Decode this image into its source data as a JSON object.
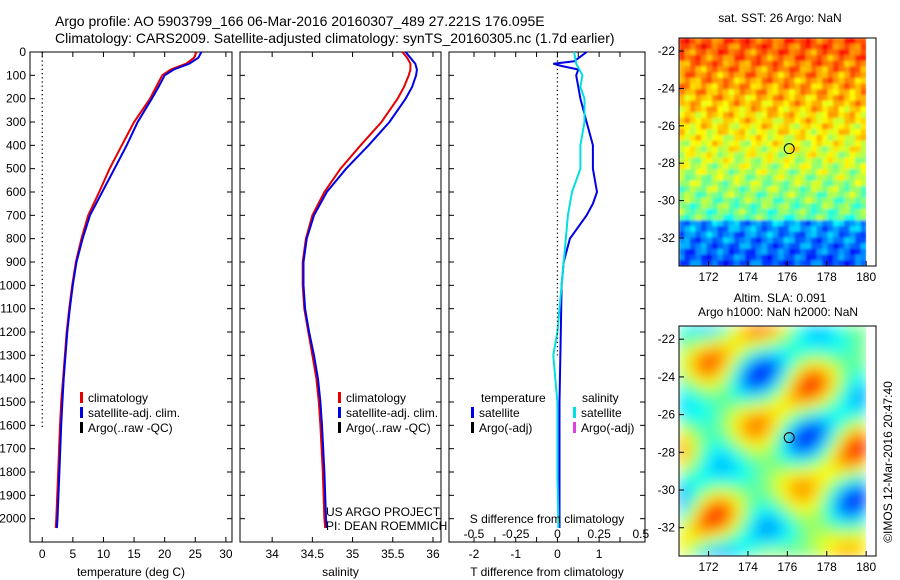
{
  "header": {
    "line1": "Argo profile: AO 5903799_166 06-Mar-2016 20160307_489 27.221S 176.095E",
    "line2": "Climatology: CARS2009. Satellite-adjusted climatology: synTS_20160305.nc (1.7d earlier)"
  },
  "project": {
    "line1": "US ARGO PROJECT",
    "line2": "PI: DEAN ROEMMICH"
  },
  "watermark": "©IMOS 12-Mar-2016 20:47:40",
  "colors": {
    "climatology": "#e60000",
    "satellite": "#0000e6",
    "argo": "#000000",
    "sal_satellite": "#00e0e0",
    "sal_argo": "#e040e0"
  },
  "chart_data": [
    {
      "type": "line",
      "xlabel": "temperature (deg C)",
      "xlim": [
        -2,
        31
      ],
      "ylim": [
        2100,
        0
      ],
      "xticks": [
        0,
        5,
        10,
        15,
        20,
        25,
        30
      ],
      "yticks": [
        0,
        100,
        200,
        300,
        400,
        500,
        600,
        700,
        800,
        900,
        1000,
        1100,
        1200,
        1300,
        1400,
        1500,
        1600,
        1700,
        1800,
        1900,
        2000
      ],
      "legend": [
        "climatology",
        "satellite-adj. clim.",
        "Argo(..raw -QC)"
      ],
      "series": [
        {
          "name": "climatology",
          "color": "#e60000",
          "depth": [
            0,
            25,
            50,
            75,
            100,
            150,
            200,
            300,
            400,
            500,
            600,
            700,
            800,
            900,
            1000,
            1100,
            1200,
            1300,
            1400,
            1500,
            1600,
            1800,
            2000,
            2040
          ],
          "values": [
            25.2,
            24.8,
            23.5,
            21.0,
            19.6,
            18.6,
            17.6,
            15.0,
            13.0,
            11.0,
            9.3,
            7.5,
            6.4,
            5.5,
            4.9,
            4.4,
            4.0,
            3.7,
            3.4,
            3.1,
            2.9,
            2.6,
            2.3,
            2.2
          ]
        },
        {
          "name": "satellite-adj. clim.",
          "color": "#0000e6",
          "depth": [
            0,
            25,
            50,
            75,
            100,
            150,
            200,
            300,
            400,
            500,
            600,
            700,
            800,
            900,
            1000,
            1100,
            1200,
            1300,
            1400,
            1500,
            1600,
            1800,
            2000,
            2040
          ],
          "values": [
            26.0,
            25.5,
            24.0,
            21.5,
            20.0,
            19.0,
            17.9,
            15.6,
            13.8,
            11.8,
            9.8,
            7.8,
            6.6,
            5.6,
            5.0,
            4.5,
            4.1,
            3.8,
            3.5,
            3.3,
            3.1,
            2.8,
            2.5,
            2.4
          ]
        },
        {
          "name": "Argo(..raw -QC)",
          "color": "#000000",
          "x": [
            0,
            0
          ],
          "depth": [
            0,
            1610
          ],
          "dotted": true
        }
      ]
    },
    {
      "type": "line",
      "xlabel": "salinity",
      "xlim": [
        33.6,
        36.1
      ],
      "ylim": [
        2100,
        0
      ],
      "xticks": [
        34,
        34.5,
        35,
        35.5,
        36
      ],
      "legend": [
        "climatology",
        "satellite-adj. clim.",
        "Argo(..raw -QC)"
      ],
      "series": [
        {
          "name": "climatology",
          "color": "#e60000",
          "depth": [
            0,
            25,
            50,
            75,
            100,
            150,
            200,
            300,
            400,
            500,
            600,
            700,
            800,
            900,
            1000,
            1100,
            1200,
            1300,
            1400,
            1500,
            1600,
            1800,
            2000,
            2040
          ],
          "values": [
            35.62,
            35.68,
            35.72,
            35.72,
            35.7,
            35.64,
            35.56,
            35.36,
            35.1,
            34.85,
            34.65,
            34.5,
            34.42,
            34.38,
            34.38,
            34.4,
            34.45,
            34.5,
            34.55,
            34.58,
            34.6,
            34.63,
            34.65,
            34.66
          ]
        },
        {
          "name": "satellite-adj. clim.",
          "color": "#0000e6",
          "depth": [
            0,
            25,
            50,
            75,
            100,
            150,
            200,
            300,
            400,
            500,
            600,
            700,
            800,
            900,
            1000,
            1100,
            1200,
            1300,
            1400,
            1500,
            1600,
            1800,
            2000,
            2040
          ],
          "values": [
            35.66,
            35.72,
            35.78,
            35.8,
            35.79,
            35.74,
            35.66,
            35.46,
            35.2,
            34.92,
            34.68,
            34.52,
            34.43,
            34.39,
            34.39,
            34.41,
            34.46,
            34.52,
            34.57,
            34.6,
            34.62,
            34.65,
            34.67,
            34.68
          ]
        }
      ]
    },
    {
      "type": "line",
      "xlabel": "T difference from climatology",
      "xlabel_top": "S difference from climatology",
      "xlim": [
        -2.6,
        2.1
      ],
      "ylim": [
        2100,
        0
      ],
      "xticks": [
        -2,
        -1.5,
        -1,
        -0.5,
        0,
        0.5,
        1,
        1.5
      ],
      "xticklabels": [
        "-2",
        "",
        "-1",
        "",
        "0",
        "",
        "1",
        ""
      ],
      "xticks_top": [
        -0.5,
        -0.25,
        0,
        0.25,
        0.5
      ],
      "legend_temperature": [
        "temperature",
        "satellite",
        "Argo(-adj)"
      ],
      "legend_salinity": [
        "salinity",
        "satellite",
        "Argo(-adj)"
      ],
      "series": [
        {
          "name": "satellite",
          "color": "#0000e6",
          "depth": [
            0,
            20,
            40,
            50,
            60,
            75,
            100,
            150,
            200,
            300,
            400,
            500,
            600,
            650,
            700,
            800,
            900,
            1000,
            1200,
            1500,
            1800,
            2000,
            2040
          ],
          "values": [
            0.7,
            0.55,
            0.4,
            -0.1,
            0.1,
            0.5,
            0.45,
            0.5,
            0.55,
            0.7,
            0.85,
            0.85,
            0.95,
            0.85,
            0.7,
            0.3,
            0.15,
            0.1,
            0.08,
            0.05,
            0.05,
            0.05,
            0.05
          ]
        },
        {
          "name": "satellite",
          "color": "#00e0e0",
          "depth": [
            0,
            50,
            100,
            150,
            200,
            300,
            400,
            500,
            600,
            700,
            800,
            900,
            1000,
            1100,
            1200,
            1300,
            1400,
            1500,
            1800,
            2000,
            2040
          ],
          "values": [
            0.4,
            0.45,
            0.6,
            0.55,
            0.65,
            0.65,
            0.55,
            0.55,
            0.35,
            0.25,
            0.2,
            0.15,
            0.1,
            0.05,
            0.0,
            -0.1,
            -0.05,
            0.0,
            0.0,
            0.02,
            0.02
          ]
        },
        {
          "name": "zero",
          "color": "#000000",
          "x": [
            0,
            0
          ],
          "depth": [
            0,
            1300
          ],
          "dotted": true
        }
      ]
    },
    {
      "type": "heatmap",
      "title": "sat. SST: 26 Argo: NaN",
      "colormap": "jet",
      "xlim": [
        170.5,
        180.5
      ],
      "ylim": [
        -33.5,
        -21.3
      ],
      "xticks": [
        172,
        174,
        176,
        178,
        180
      ],
      "yticks": [
        -22,
        -24,
        -26,
        -28,
        -30,
        -32
      ],
      "marker": [
        176.095,
        -27.221
      ]
    },
    {
      "type": "heatmap",
      "title_line1": "Altim. SLA: 0.091",
      "title_line2": "Argo h1000: NaN h2000: NaN",
      "colormap": "jet",
      "xlim": [
        170.5,
        180.5
      ],
      "ylim": [
        -33.5,
        -21.3
      ],
      "xticks": [
        172,
        174,
        176,
        178,
        180
      ],
      "yticks": [
        -22,
        -24,
        -26,
        -28,
        -30,
        -32
      ],
      "marker": [
        176.095,
        -27.221
      ]
    }
  ]
}
